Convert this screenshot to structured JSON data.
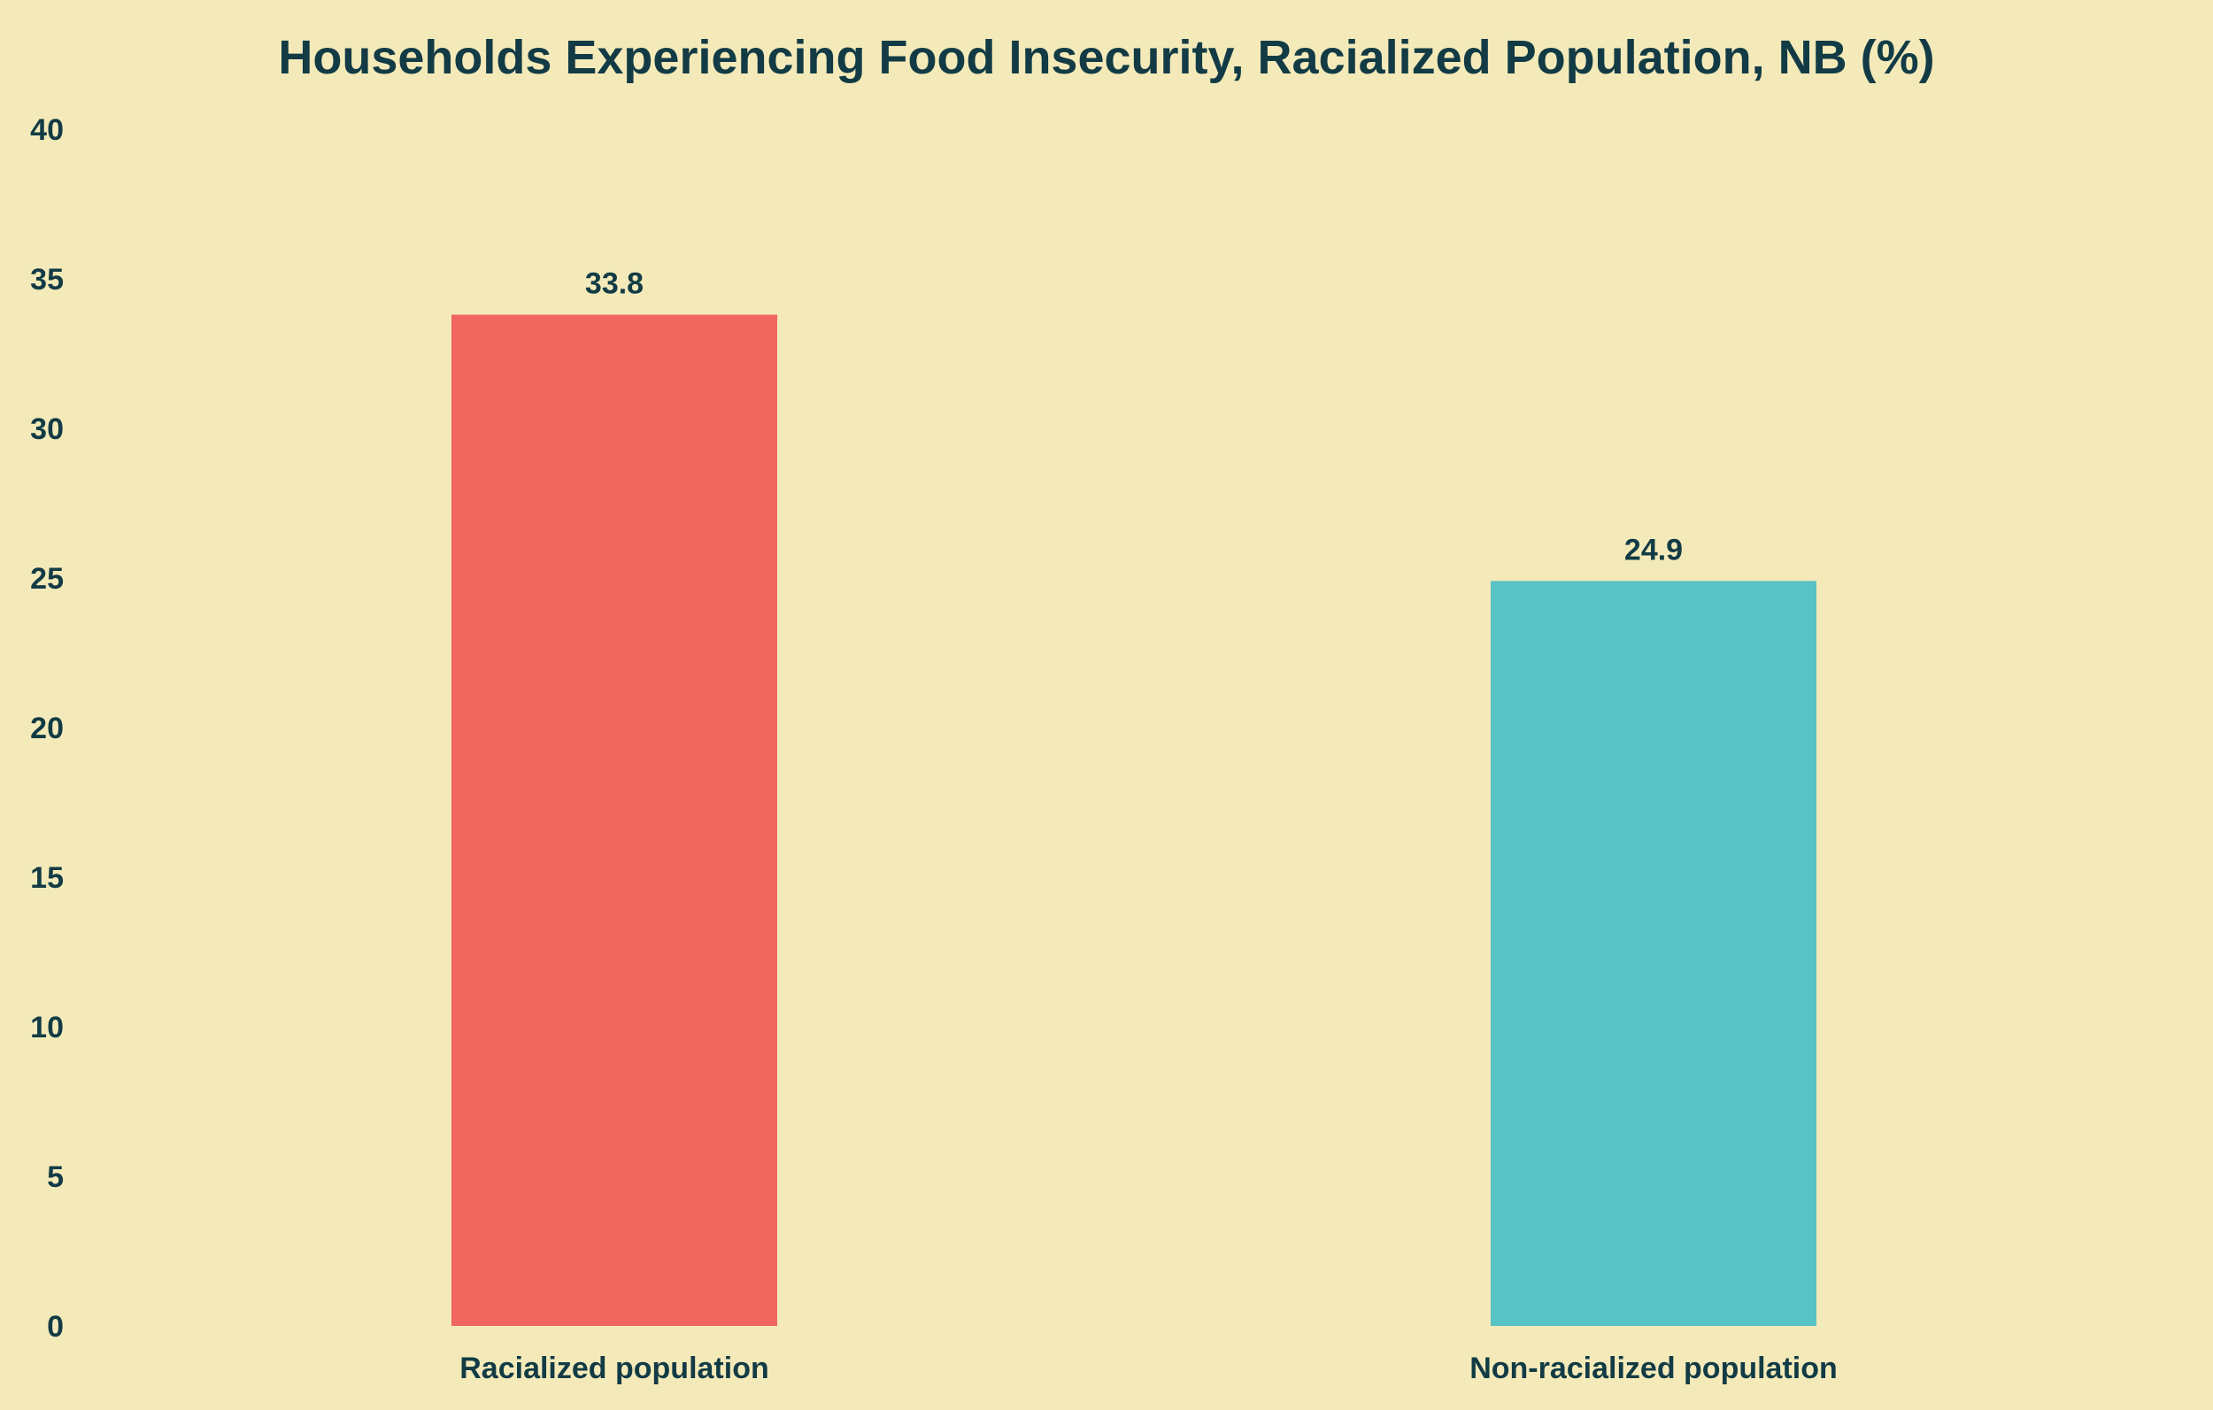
{
  "colors": {
    "background": "#f4eab9",
    "text": "#123b45"
  },
  "chart_data": {
    "type": "bar",
    "title": "Households Experiencing Food Insecurity, Racialized Population, NB (%)",
    "xlabel": "",
    "ylabel": "",
    "categories": [
      "Racialized population",
      "Non-racialized population"
    ],
    "values": [
      33.8,
      24.9
    ],
    "value_labels": [
      "33.8",
      "24.9"
    ],
    "bar_colors": [
      "#f1665f",
      "#57c3c5"
    ],
    "ylim": [
      0,
      40
    ],
    "yticks": [
      0,
      5,
      10,
      15,
      20,
      25,
      30,
      35,
      40
    ],
    "ytick_labels": [
      "0",
      "5",
      "10",
      "15",
      "20",
      "25",
      "30",
      "35",
      "40"
    ],
    "grid": false,
    "legend": "none"
  }
}
